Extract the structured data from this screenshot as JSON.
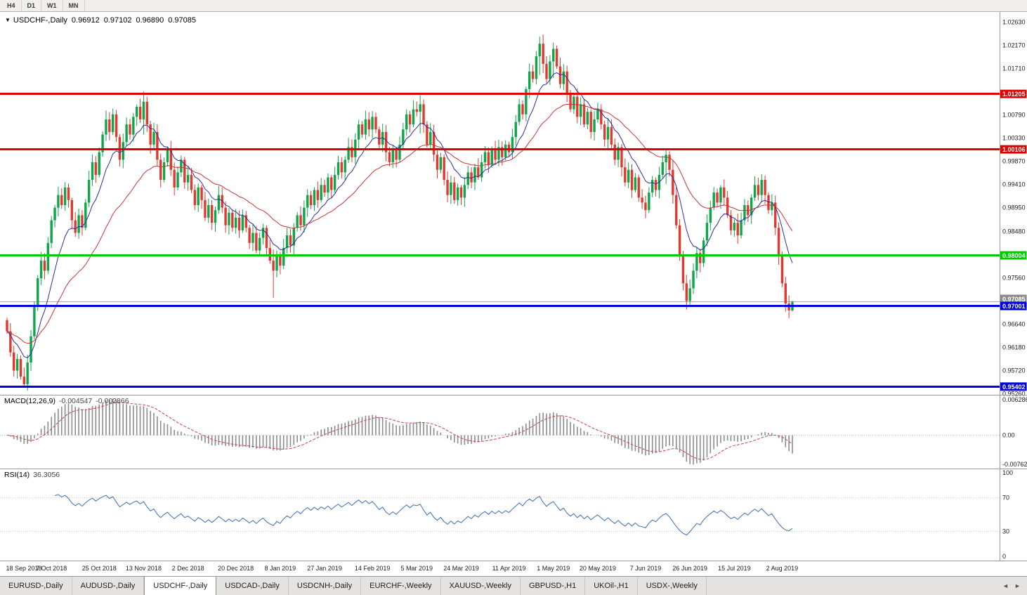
{
  "toolbar": {
    "periods": [
      {
        "label": "H4"
      },
      {
        "label": "D1"
      },
      {
        "label": "W1"
      },
      {
        "label": "MN"
      }
    ]
  },
  "chart": {
    "title": {
      "expander": "▼",
      "symbol": "USDCHF-,Daily",
      "open": "0.96912",
      "high": "0.97102",
      "low": "0.96890",
      "close": "0.97085"
    },
    "macd_label": "MACD(12,26,9)",
    "macd_value_main": "-0.004547",
    "macd_value_signal": "-0.002866",
    "rsi_label": "RSI(14)",
    "rsi_value": "36.3056"
  },
  "chart_data": {
    "type": "candlestick",
    "symbol": "USDCHF-",
    "timeframe": "Daily",
    "ylim": [
      0.9524,
      1.0283
    ],
    "first_open": 0.9672,
    "default_wick": 0.0014,
    "closes": [
      0.965,
      0.9608,
      0.9572,
      0.9595,
      0.956,
      0.9545,
      0.9588,
      0.964,
      0.97,
      0.9755,
      0.979,
      0.977,
      0.9825,
      0.987,
      0.9895,
      0.992,
      0.99,
      0.9935,
      0.991,
      0.987,
      0.9845,
      0.988,
      0.9855,
      0.9905,
      0.995,
      0.9985,
      0.996,
      1.0005,
      1.004,
      1.007,
      1.0045,
      1.008,
      1.0035,
      0.999,
      1.0025,
      1.006,
      1.004,
      1.0075,
      1.0095,
      1.007,
      1.0105,
      1.006,
      1.002,
      1.0045,
      0.999,
      0.995,
      0.9985,
      1.001,
      0.997,
      0.9935,
      0.9965,
      0.999,
      0.9945,
      0.996,
      0.993,
      0.99,
      0.9935,
      0.991,
      0.9875,
      0.99,
      0.9865,
      0.989,
      0.992,
      0.9895,
      0.986,
      0.9885,
      0.9855,
      0.9875,
      0.985,
      0.988,
      0.9855,
      0.9825,
      0.9845,
      0.981,
      0.9835,
      0.9855,
      0.9815,
      0.979,
      0.977,
      0.98,
      0.978,
      0.9815,
      0.984,
      0.982,
      0.9855,
      0.988,
      0.986,
      0.9895,
      0.992,
      0.99,
      0.993,
      0.991,
      0.994,
      0.9925,
      0.9955,
      0.993,
      0.996,
      0.9985,
      0.9965,
      0.999,
      1.0015,
      0.9995,
      1.003,
      1.006,
      1.004,
      1.007,
      1.005,
      1.0075,
      1.005,
      1.002,
      1.0045,
      1.0005,
      0.9985,
      1.001,
      0.999,
      1.002,
      1.005,
      1.008,
      1.006,
      1.009,
      1.0085,
      1.01,
      1.006,
      1.002,
      1.0045,
      1.0,
      0.997,
      0.9995,
      0.995,
      0.992,
      0.9945,
      0.991,
      0.9935,
      0.9915,
      0.994,
      0.9965,
      0.9945,
      0.9975,
      0.9955,
      0.9985,
      1.0005,
      0.998,
      1.001,
      0.999,
      1.0015,
      0.9995,
      1.002,
      1.0005,
      1.0035,
      1.0065,
      1.01,
      1.008,
      1.013,
      1.0165,
      1.015,
      1.0195,
      1.022,
      1.018,
      1.015,
      1.0185,
      1.021,
      1.0175,
      1.014,
      1.0165,
      1.012,
      1.009,
      1.0115,
      1.0075,
      1.01,
      1.006,
      1.0085,
      1.0045,
      1.007,
      1.009,
      1.006,
      1.003,
      1.0055,
      1.002,
      0.999,
      1.0015,
      0.9975,
      0.9945,
      0.997,
      0.993,
      0.9955,
      0.9915,
      0.9905,
      0.989,
      0.9925,
      0.995,
      0.993,
      0.996,
      0.9985,
      1.0,
      0.997,
      0.992,
      0.986,
      0.98,
      0.9745,
      0.971,
      0.9735,
      0.977,
      0.9805,
      0.9785,
      0.983,
      0.9865,
      0.9895,
      0.9925,
      0.9905,
      0.9935,
      0.9915,
      0.988,
      0.985,
      0.9865,
      0.984,
      0.987,
      0.99,
      0.988,
      0.9915,
      0.994,
      0.992,
      0.995,
      0.992,
      0.989,
      0.9905,
      0.9855,
      0.98,
      0.9745,
      0.9705,
      0.96912,
      0.97085
    ],
    "wick_overrides": {
      "5": [
        0.9578,
        0.954
      ],
      "40": [
        1.0125,
        1.004
      ],
      "78": [
        0.9812,
        0.9716
      ],
      "121": [
        1.0118,
        1.0042
      ],
      "156": [
        1.0234,
        1.0158
      ],
      "160": [
        1.0222,
        1.0152
      ],
      "193": [
        1.0012,
        0.9942
      ],
      "199": [
        0.9762,
        0.9693
      ],
      "228": [
        0.9758,
        0.9689
      ],
      "230": [
        0.97102,
        0.9689
      ]
    },
    "colors": {
      "candle_up": "#0fa64a",
      "candle_down": "#e0392f",
      "ma_fast": "#2a2f9e",
      "ma_slow": "#cc3333",
      "macd_hist": "#8c8c8c",
      "macd_signal": "#cc4444",
      "rsi_line": "#3b6fb5",
      "current_price_line": "#aaaaaa",
      "current_price_badge": "#8a8a8a"
    },
    "ma": [
      {
        "period": 10,
        "color": "#2a2f9e"
      },
      {
        "period": 30,
        "color": "#cc3333"
      }
    ],
    "hlines": [
      {
        "price": 1.01205,
        "label": "1.01205",
        "color": "#e00000",
        "width": 3
      },
      {
        "price": 1.00106,
        "label": "1.00106",
        "color": "#e00000",
        "width": 3
      },
      {
        "price": 0.98004,
        "label": "0.98004",
        "color": "#00cd00",
        "width": 3
      },
      {
        "price": 0.97001,
        "label": "0.97001",
        "color": "#0000e6",
        "width": 3
      },
      {
        "price": 0.95402,
        "label": "0.95402",
        "color": "#0000e6",
        "width": 3
      }
    ],
    "current_price": {
      "price": 0.97085,
      "label": "0.97085"
    },
    "axis_ticks": [
      "1.02630",
      "1.02170",
      "1.01710",
      "1.00790",
      "1.00330",
      "0.99870",
      "0.99410",
      "0.98950",
      "0.98480",
      "0.97560",
      "0.96640",
      "0.96180",
      "0.95720",
      "0.95260"
    ],
    "macd": {
      "label": "MACD(12,26,9)",
      "fast": 12,
      "slow": 26,
      "signal": 9,
      "ticks": [
        "0.006286",
        "0.00",
        "-0.00762"
      ]
    },
    "rsi": {
      "label": "RSI(14)",
      "period": 14,
      "scale_top": 105,
      "scale_bot": -5,
      "ticks": [
        100,
        70,
        30,
        0
      ],
      "levels": [
        70,
        30
      ]
    },
    "x_labels": [
      {
        "label": "18 Sep 2018",
        "i": 0
      },
      {
        "label": "7 Oct 2018",
        "i": 13
      },
      {
        "label": "25 Oct 2018",
        "i": 27
      },
      {
        "label": "13 Nov 2018",
        "i": 40
      },
      {
        "label": "2 Dec 2018",
        "i": 53
      },
      {
        "label": "20 Dec 2018",
        "i": 67
      },
      {
        "label": "8 Jan 2019",
        "i": 80
      },
      {
        "label": "27 Jan 2019",
        "i": 93
      },
      {
        "label": "14 Feb 2019",
        "i": 107
      },
      {
        "label": "5 Mar 2019",
        "i": 120
      },
      {
        "label": "24 Mar 2019",
        "i": 133
      },
      {
        "label": "11 Apr 2019",
        "i": 147
      },
      {
        "label": "1 May 2019",
        "i": 160
      },
      {
        "label": "20 May 2019",
        "i": 173
      },
      {
        "label": "7 Jun 2019",
        "i": 187
      },
      {
        "label": "26 Jun 2019",
        "i": 200
      },
      {
        "label": "15 Jul 2019",
        "i": 213
      },
      {
        "label": "2 Aug 2019",
        "i": 227
      }
    ]
  },
  "tabs": {
    "scroll_left": "◄",
    "scroll_right": "►",
    "items": [
      {
        "label": "EURUSD-,Daily",
        "active": false
      },
      {
        "label": "AUDUSD-,Daily",
        "active": false
      },
      {
        "label": "USDCHF-,Daily",
        "active": true
      },
      {
        "label": "USDCAD-,Daily",
        "active": false
      },
      {
        "label": "USDCNH-,Daily",
        "active": false
      },
      {
        "label": "EURCHF-,Weekly",
        "active": false
      },
      {
        "label": "XAUUSD-,Weekly",
        "active": false
      },
      {
        "label": "GBPUSD-,H1",
        "active": false
      },
      {
        "label": "UKOil-,H1",
        "active": false
      },
      {
        "label": "USDX-,Weekly",
        "active": false
      }
    ]
  }
}
